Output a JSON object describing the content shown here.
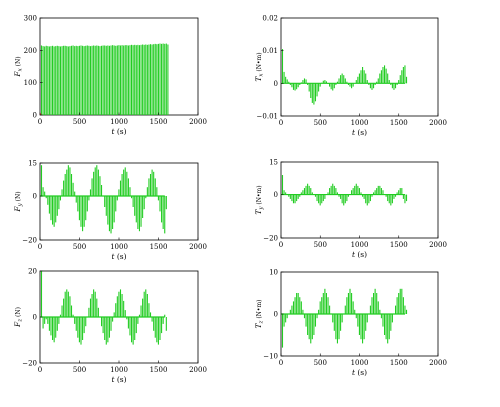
{
  "figure": {
    "bar_color": "#22cc22",
    "axis_color": "#000000"
  },
  "chart_data": [
    {
      "id": "fx",
      "type": "bar",
      "ylabel": "F_x (N)",
      "ylabel_main": "F",
      "ylabel_sub": "x",
      "ylabel_unit": " (N)",
      "xlabel_main": "t",
      "xlabel_unit": " (s)",
      "xlim": [
        0,
        2000
      ],
      "ylim": [
        0,
        300
      ],
      "xticks": [
        "0",
        "500",
        "1000",
        "1500",
        "2000"
      ],
      "yticks": [
        "0",
        "100",
        "200",
        "300"
      ],
      "x": [
        0,
        20,
        40,
        60,
        80,
        100,
        120,
        140,
        160,
        180,
        200,
        220,
        240,
        260,
        280,
        300,
        320,
        340,
        360,
        380,
        400,
        420,
        440,
        460,
        480,
        500,
        520,
        540,
        560,
        580,
        600,
        620,
        640,
        660,
        680,
        700,
        720,
        740,
        760,
        780,
        800,
        820,
        840,
        860,
        880,
        900,
        920,
        940,
        960,
        980,
        1000,
        1020,
        1040,
        1060,
        1080,
        1100,
        1120,
        1140,
        1160,
        1180,
        1200,
        1220,
        1240,
        1260,
        1280,
        1300,
        1320,
        1340,
        1360,
        1380,
        1400,
        1420,
        1440,
        1460,
        1480,
        1500,
        1520,
        1540,
        1560,
        1580,
        1600
      ],
      "values": [
        215,
        213,
        212,
        214,
        213,
        212,
        213,
        214,
        212,
        213,
        214,
        213,
        212,
        213,
        214,
        214,
        213,
        212,
        213,
        214,
        215,
        213,
        214,
        213,
        214,
        215,
        214,
        213,
        214,
        215,
        214,
        213,
        214,
        215,
        214,
        215,
        214,
        213,
        214,
        215,
        215,
        214,
        215,
        214,
        215,
        216,
        215,
        214,
        215,
        216,
        215,
        216,
        215,
        216,
        216,
        215,
        216,
        217,
        216,
        217,
        216,
        217,
        216,
        217,
        218,
        217,
        218,
        217,
        218,
        219,
        218,
        219,
        220,
        219,
        220,
        221,
        220,
        221,
        220,
        221,
        218
      ],
      "highlights": [
        {
          "x": 0,
          "y": 5,
          "color": "#e33333"
        }
      ]
    },
    {
      "id": "fy",
      "type": "bar",
      "ylabel": "F_y (N)",
      "ylabel_main": "F",
      "ylabel_sub": "y",
      "ylabel_unit": " (N)",
      "xlabel_main": "t",
      "xlabel_unit": " (s)",
      "xlim": [
        0,
        2000
      ],
      "ylim": [
        -20,
        15
      ],
      "yticks_values": [
        -20,
        0,
        15
      ],
      "yticks": [
        "−20",
        "0",
        "15"
      ],
      "xticks": [
        "0",
        "500",
        "1000",
        "1500",
        "2000"
      ],
      "x": [
        0,
        20,
        40,
        60,
        80,
        100,
        120,
        140,
        160,
        180,
        200,
        220,
        240,
        260,
        280,
        300,
        320,
        340,
        360,
        380,
        400,
        420,
        440,
        460,
        480,
        500,
        520,
        540,
        560,
        580,
        600,
        620,
        640,
        660,
        680,
        700,
        720,
        740,
        760,
        780,
        800,
        820,
        840,
        860,
        880,
        900,
        920,
        940,
        960,
        980,
        1000,
        1020,
        1040,
        1060,
        1080,
        1100,
        1120,
        1140,
        1160,
        1180,
        1200,
        1220,
        1240,
        1260,
        1280,
        1300,
        1320,
        1340,
        1360,
        1380,
        1400,
        1420,
        1440,
        1460,
        1480,
        1500,
        1520,
        1540,
        1560,
        1580
      ],
      "values": [
        14,
        4,
        2,
        -1,
        -4,
        -8,
        -11,
        -13,
        -14,
        -12,
        -9,
        -6,
        -2,
        3,
        7,
        10,
        12,
        14,
        13,
        10,
        6,
        2,
        -3,
        -7,
        -11,
        -14,
        -16,
        -14,
        -11,
        -7,
        -2,
        3,
        8,
        11,
        13,
        14,
        12,
        9,
        5,
        0,
        -5,
        -9,
        -13,
        -16,
        -17,
        -15,
        -12,
        -7,
        -2,
        3,
        7,
        10,
        12,
        13,
        11,
        8,
        4,
        -1,
        -5,
        -9,
        -12,
        -15,
        -16,
        -14,
        -10,
        -6,
        -1,
        4,
        8,
        10,
        12,
        11,
        8,
        4,
        -2,
        -7,
        -12,
        -15,
        -17,
        -6
      ]
    },
    {
      "id": "fz",
      "type": "bar",
      "ylabel": "F_z (N)",
      "ylabel_main": "F",
      "ylabel_sub": "z",
      "ylabel_unit": " (N)",
      "xlabel_main": "t",
      "xlabel_unit": " (s)",
      "xlim": [
        0,
        2000
      ],
      "ylim": [
        -20,
        20
      ],
      "yticks_values": [
        -20,
        0,
        20
      ],
      "yticks": [
        "−20",
        "0",
        "20"
      ],
      "xticks": [
        "0",
        "500",
        "1000",
        "1500",
        "2000"
      ],
      "x": [
        0,
        20,
        40,
        60,
        80,
        100,
        120,
        140,
        160,
        180,
        200,
        220,
        240,
        260,
        280,
        300,
        320,
        340,
        360,
        380,
        400,
        420,
        440,
        460,
        480,
        500,
        520,
        540,
        560,
        580,
        600,
        620,
        640,
        660,
        680,
        700,
        720,
        740,
        760,
        780,
        800,
        820,
        840,
        860,
        880,
        900,
        920,
        940,
        960,
        980,
        1000,
        1020,
        1040,
        1060,
        1080,
        1100,
        1120,
        1140,
        1160,
        1180,
        1200,
        1220,
        1240,
        1260,
        1280,
        1300,
        1320,
        1340,
        1360,
        1380,
        1400,
        1420,
        1440,
        1460,
        1480,
        1500,
        1520,
        1540,
        1560,
        1580
      ],
      "values": [
        20,
        -5,
        -3,
        -1,
        -3,
        -6,
        -8,
        -10,
        -11,
        -9,
        -6,
        -3,
        1,
        5,
        8,
        11,
        12,
        11,
        9,
        5,
        1,
        -3,
        -6,
        -9,
        -11,
        -12,
        -10,
        -7,
        -4,
        0,
        4,
        8,
        10,
        12,
        11,
        8,
        4,
        0,
        -4,
        -7,
        -10,
        -12,
        -11,
        -9,
        -6,
        -2,
        2,
        6,
        9,
        11,
        12,
        10,
        7,
        3,
        -1,
        -5,
        -8,
        -11,
        -12,
        -10,
        -7,
        -3,
        1,
        5,
        8,
        11,
        12,
        10,
        6,
        2,
        -2,
        -6,
        -9,
        -11,
        -12,
        -10,
        -7,
        -3,
        1,
        -6
      ]
    },
    {
      "id": "tx",
      "type": "bar",
      "ylabel": "T_x (N•m)",
      "ylabel_main": "T",
      "ylabel_sub": "x",
      "ylabel_unit": " (N•m)",
      "xlabel_main": "t",
      "xlabel_unit": " (s)",
      "xlim": [
        0,
        2000
      ],
      "ylim": [
        -0.01,
        0.02
      ],
      "yticks_values": [
        -0.01,
        0,
        0.01,
        0.02
      ],
      "yticks": [
        "−0.01",
        "0",
        "0.01",
        "0.02"
      ],
      "xticks": [
        "0",
        "500",
        "1000",
        "1500",
        "2000"
      ],
      "x": [
        0,
        20,
        40,
        60,
        80,
        100,
        120,
        140,
        160,
        180,
        200,
        220,
        240,
        260,
        280,
        300,
        320,
        340,
        360,
        380,
        400,
        420,
        440,
        460,
        480,
        500,
        520,
        540,
        560,
        580,
        600,
        620,
        640,
        660,
        680,
        700,
        720,
        740,
        760,
        780,
        800,
        820,
        840,
        860,
        880,
        900,
        920,
        940,
        960,
        980,
        1000,
        1020,
        1040,
        1060,
        1080,
        1100,
        1120,
        1140,
        1160,
        1180,
        1200,
        1220,
        1240,
        1260,
        1280,
        1300,
        1320,
        1340,
        1360,
        1380,
        1400,
        1420,
        1440,
        1460,
        1480,
        1500,
        1520,
        1540,
        1560,
        1580
      ],
      "values": [
        0.0105,
        0.0035,
        0.002,
        0.0012,
        0.0005,
        -0.0005,
        -0.0012,
        -0.002,
        -0.0022,
        -0.0018,
        -0.0012,
        -0.0005,
        0.0003,
        0.001,
        0.0015,
        0.0012,
        -0.0005,
        -0.0025,
        -0.0045,
        -0.006,
        -0.0065,
        -0.0055,
        -0.004,
        -0.0025,
        -0.001,
        0.0002,
        0.0008,
        0.001,
        0.0006,
        -0.0002,
        -0.001,
        -0.0018,
        -0.0022,
        -0.0015,
        -0.0005,
        0.0005,
        0.0015,
        0.0025,
        0.003,
        0.0025,
        0.0015,
        0.0005,
        -0.0005,
        -0.001,
        -0.0015,
        -0.001,
        0,
        0.001,
        0.002,
        0.003,
        0.004,
        0.005,
        0.004,
        0.003,
        0.001,
        -0.0005,
        -0.0015,
        -0.002,
        -0.0015,
        -0.0005,
        0.0005,
        0.0015,
        0.003,
        0.004,
        0.005,
        0.0055,
        0.0045,
        0.003,
        0.001,
        -0.0005,
        -0.0015,
        -0.002,
        -0.0015,
        -0.0005,
        0.001,
        0.0025,
        0.004,
        0.005,
        0.0055,
        0.002
      ]
    },
    {
      "id": "ty",
      "type": "bar",
      "ylabel": "T_y (N•m)",
      "ylabel_main": "T",
      "ylabel_sub": "y",
      "ylabel_unit": " (N•m)",
      "xlabel_main": "t",
      "xlabel_unit": " (s)",
      "xlim": [
        0,
        2000
      ],
      "ylim": [
        -20,
        15
      ],
      "yticks_values": [
        -20,
        0,
        15
      ],
      "yticks": [
        "−20",
        "0",
        "15"
      ],
      "xticks": [
        "0",
        "500",
        "1000",
        "1500",
        "2000"
      ],
      "x": [
        0,
        20,
        40,
        60,
        80,
        100,
        120,
        140,
        160,
        180,
        200,
        220,
        240,
        260,
        280,
        300,
        320,
        340,
        360,
        380,
        400,
        420,
        440,
        460,
        480,
        500,
        520,
        540,
        560,
        580,
        600,
        620,
        640,
        660,
        680,
        700,
        720,
        740,
        760,
        780,
        800,
        820,
        840,
        860,
        880,
        900,
        920,
        940,
        960,
        980,
        1000,
        1020,
        1040,
        1060,
        1080,
        1100,
        1120,
        1140,
        1160,
        1180,
        1200,
        1220,
        1240,
        1260,
        1280,
        1300,
        1320,
        1340,
        1360,
        1380,
        1400,
        1420,
        1440,
        1460,
        1480,
        1500,
        1520,
        1540,
        1560,
        1580
      ],
      "values": [
        9,
        2,
        1,
        0,
        -1,
        -2,
        -3,
        -4,
        -4,
        -3,
        -2,
        -1,
        1,
        2,
        3,
        4,
        5,
        4,
        3,
        1,
        0,
        -1,
        -3,
        -4,
        -5,
        -4,
        -3,
        -2,
        0,
        1,
        3,
        4,
        5,
        4,
        3,
        1,
        -1,
        -2,
        -4,
        -5,
        -4,
        -3,
        -1,
        0,
        2,
        3,
        4,
        5,
        4,
        3,
        1,
        -1,
        -2,
        -4,
        -5,
        -4,
        -3,
        -1,
        1,
        2,
        3,
        4,
        4,
        3,
        2,
        0,
        -1,
        -3,
        -4,
        -5,
        -4,
        -2,
        -1,
        1,
        2,
        3,
        3,
        -2,
        -4,
        -3
      ]
    },
    {
      "id": "tz",
      "type": "bar",
      "ylabel": "T_z (N•m)",
      "ylabel_main": "T",
      "ylabel_sub": "z",
      "ylabel_unit": " (N•m)",
      "xlabel_main": "t",
      "xlabel_unit": " (s)",
      "xlim": [
        0,
        2000
      ],
      "ylim": [
        -10,
        10
      ],
      "yticks_values": [
        -10,
        0,
        10
      ],
      "yticks": [
        "−10",
        "0",
        "10"
      ],
      "xticks": [
        "0",
        "500",
        "1000",
        "1500",
        "2000"
      ],
      "x": [
        0,
        20,
        40,
        60,
        80,
        100,
        120,
        140,
        160,
        180,
        200,
        220,
        240,
        260,
        280,
        300,
        320,
        340,
        360,
        380,
        400,
        420,
        440,
        460,
        480,
        500,
        520,
        540,
        560,
        580,
        600,
        620,
        640,
        660,
        680,
        700,
        720,
        740,
        760,
        780,
        800,
        820,
        840,
        860,
        880,
        900,
        920,
        940,
        960,
        980,
        1000,
        1020,
        1040,
        1060,
        1080,
        1100,
        1120,
        1140,
        1160,
        1180,
        1200,
        1220,
        1240,
        1260,
        1280,
        1300,
        1320,
        1340,
        1360,
        1380,
        1400,
        1420,
        1440,
        1460,
        1480,
        1500,
        1520,
        1540,
        1560,
        1580
      ],
      "values": [
        -8,
        -3,
        -2,
        -1,
        0,
        1,
        2,
        3,
        4,
        5,
        5,
        4,
        3,
        1,
        -1,
        -3,
        -5,
        -6,
        -7,
        -6,
        -5,
        -3,
        -1,
        1,
        3,
        4,
        5,
        6,
        5,
        4,
        2,
        0,
        -2,
        -4,
        -6,
        -7,
        -6,
        -4,
        -2,
        0,
        2,
        4,
        5,
        6,
        5,
        3,
        1,
        -1,
        -3,
        -5,
        -6,
        -7,
        -6,
        -4,
        -2,
        0,
        2,
        4,
        5,
        6,
        5,
        3,
        1,
        -1,
        -3,
        -5,
        -6,
        -7,
        -6,
        -4,
        -2,
        0,
        2,
        4,
        5,
        6,
        6,
        4,
        2,
        1
      ]
    }
  ]
}
